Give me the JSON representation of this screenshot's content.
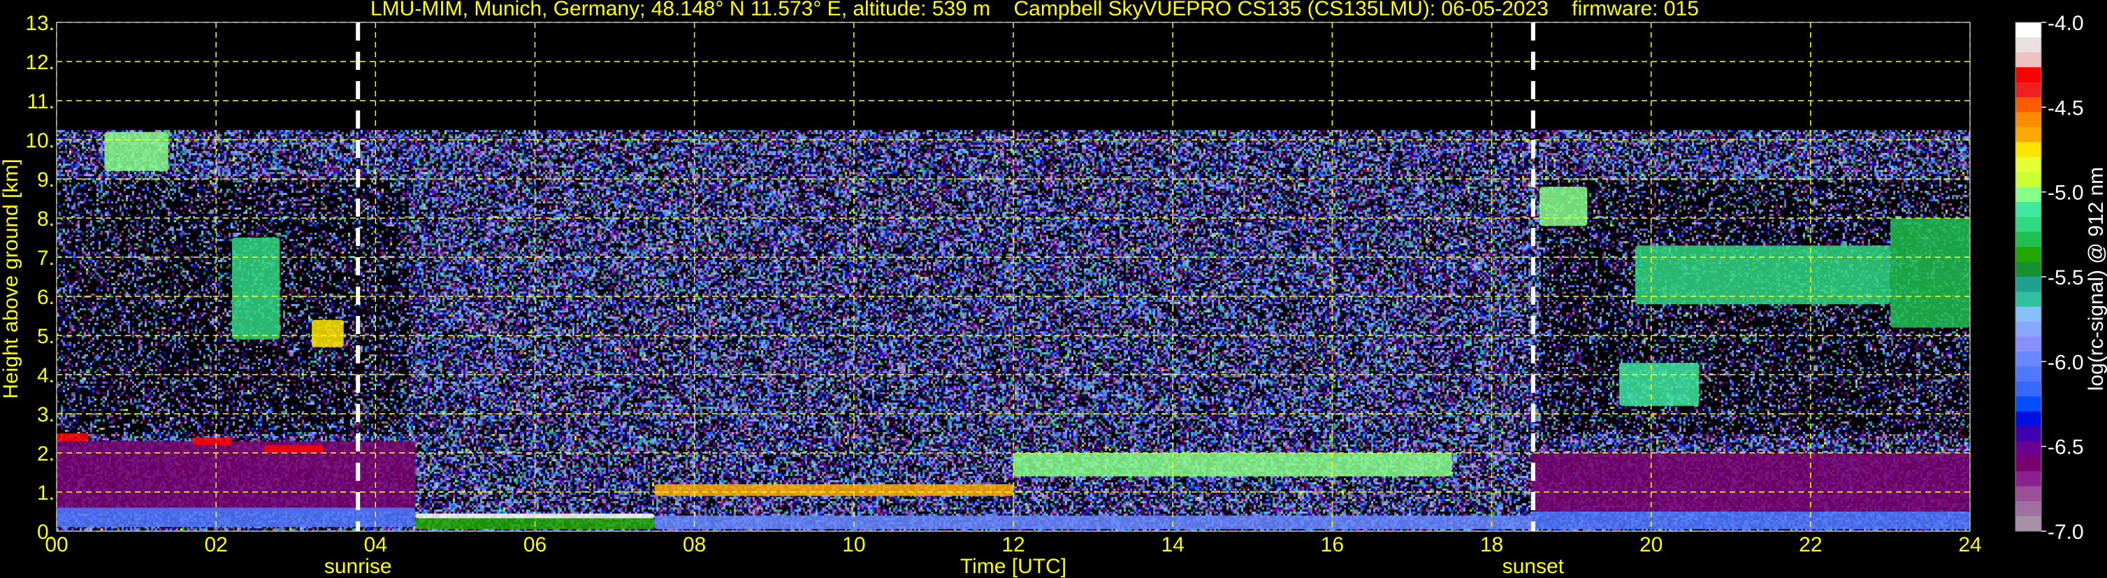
{
  "chart_data": {
    "type": "heatmap",
    "title": "LMU-MIM, Munich, Germany; 48.148° N 11.573° E, altitude: 539 m    Campbell SkyVUEPRO CS135 (CS135LMU): 06-05-2023    firmware: 015",
    "xlabel": "Time [UTC]",
    "ylabel": "Height above ground [km]",
    "xlim": [
      0,
      24
    ],
    "ylim": [
      0,
      13
    ],
    "x_ticks": [
      "00",
      "02",
      "04",
      "06",
      "08",
      "10",
      "12",
      "14",
      "16",
      "18",
      "20",
      "22",
      "24"
    ],
    "y_ticks": [
      "0.",
      "1.",
      "2.",
      "3.",
      "4.",
      "5.",
      "6.",
      "7.",
      "8.",
      "9.",
      "10.",
      "11.",
      "12.",
      "13."
    ],
    "grid": true,
    "grid_color": "#ffff00",
    "annotations": [
      {
        "label": "sunrise",
        "time": 3.78
      },
      {
        "label": "sunset",
        "time": 18.52
      }
    ],
    "colorbar": {
      "label": "log(rc-signal) @ 912 nm",
      "range": [
        -7.0,
        -4.0
      ],
      "ticks": [
        "-4.0",
        "-4.5",
        "-5.0",
        "-5.5",
        "-6.0",
        "-6.5",
        "-7.0"
      ],
      "colors": [
        "#ffffff",
        "#ebe0e0",
        "#eec0c0",
        "#ff0000",
        "#f02020",
        "#ff5a00",
        "#ff8c00",
        "#ffaa00",
        "#ffe600",
        "#e6ff33",
        "#ccff33",
        "#88ff88",
        "#40e8a0",
        "#30d880",
        "#20c050",
        "#20a800",
        "#189030",
        "#20a090",
        "#30c0a0",
        "#88c0ff",
        "#88a8ff",
        "#8890ff",
        "#6888ff",
        "#5078ff",
        "#3868ff",
        "#0050ff",
        "#0010e0",
        "#4000b0",
        "#6a0090",
        "#7a0070",
        "#8c2090",
        "#9a5098",
        "#a070a0",
        "#a890a8"
      ]
    },
    "signal_top_km": 10.25,
    "features": [
      {
        "time": [
          0,
          4.5
        ],
        "height": [
          0.5,
          2.3
        ],
        "value": -6.6
      },
      {
        "time": [
          0,
          4.5
        ],
        "height": [
          0.1,
          0.6
        ],
        "value": -6.1
      },
      {
        "time": [
          4.5,
          7.5
        ],
        "height": [
          0.05,
          0.35
        ],
        "value": -5.4
      },
      {
        "time": [
          4.5,
          7.5
        ],
        "height": [
          0.33,
          0.45
        ],
        "value": -4.0
      },
      {
        "time": [
          7.5,
          18.5
        ],
        "height": [
          0.05,
          0.4
        ],
        "value": -6.0
      },
      {
        "time": [
          7.5,
          12
        ],
        "height": [
          0.9,
          1.2
        ],
        "value": -4.6
      },
      {
        "time": [
          12,
          17.5
        ],
        "height": [
          1.4,
          2.0
        ],
        "value": -5.0
      },
      {
        "time": [
          18.5,
          24
        ],
        "height": [
          0.5,
          2.0
        ],
        "value": -6.6
      },
      {
        "time": [
          18.5,
          24
        ],
        "height": [
          0.05,
          0.5
        ],
        "value": -6.1
      },
      {
        "time": [
          0,
          0.4
        ],
        "height": [
          2.3,
          2.5
        ],
        "value": -4.3
      },
      {
        "time": [
          1.7,
          2.2
        ],
        "height": [
          2.2,
          2.4
        ],
        "value": -4.3
      },
      {
        "time": [
          2.6,
          3.35
        ],
        "height": [
          2.0,
          2.2
        ],
        "value": -4.3
      },
      {
        "time": [
          0.6,
          1.4
        ],
        "height": [
          9.2,
          10.2
        ],
        "value": -5.0
      },
      {
        "time": [
          2.2,
          2.8
        ],
        "height": [
          4.9,
          7.5
        ],
        "value": -5.2
      },
      {
        "time": [
          3.2,
          3.6
        ],
        "height": [
          4.7,
          5.4
        ],
        "value": -4.7
      },
      {
        "time": [
          19.6,
          20.6
        ],
        "height": [
          3.2,
          4.3
        ],
        "value": -5.1
      },
      {
        "time": [
          18.6,
          19.2
        ],
        "height": [
          7.8,
          8.8
        ],
        "value": -5.0
      },
      {
        "time": [
          19.8,
          23.0
        ],
        "height": [
          5.8,
          7.3
        ],
        "value": -5.2
      },
      {
        "time": [
          23.0,
          24
        ],
        "height": [
          5.2,
          8.0
        ],
        "value": -5.3
      }
    ]
  }
}
